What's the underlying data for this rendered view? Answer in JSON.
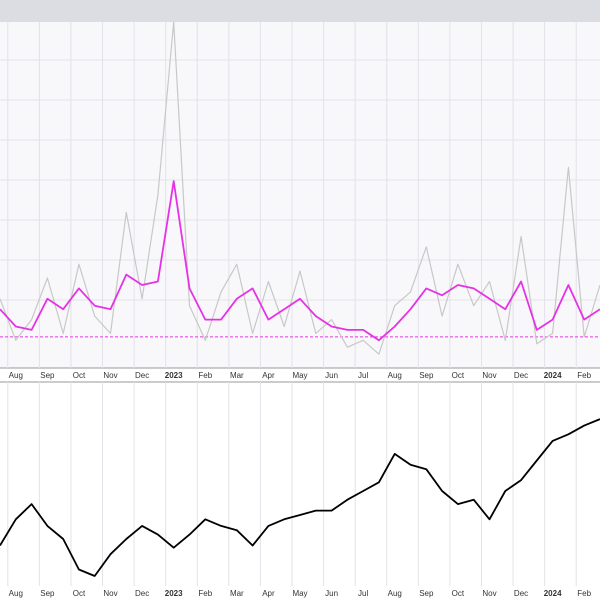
{
  "chart_data": [
    {
      "type": "line",
      "x": [
        -0.5,
        0,
        0.5,
        1,
        1.5,
        2,
        2.5,
        3,
        3.5,
        4,
        4.5,
        5,
        5.5,
        6,
        6.5,
        7,
        7.5,
        8,
        8.5,
        9,
        9.5,
        10,
        10.5,
        11,
        11.5,
        12,
        12.5,
        13,
        13.5,
        14,
        14.5,
        15,
        15.5,
        16,
        16.5,
        17,
        17.5,
        18,
        18.5
      ],
      "series": [
        {
          "color": "#c8c8c8",
          "values": [
            20,
            8,
            14,
            26,
            10,
            30,
            15,
            10,
            45,
            20,
            50,
            100,
            18,
            8,
            22,
            30,
            10,
            25,
            12,
            28,
            10,
            14,
            6,
            8,
            4,
            18,
            22,
            35,
            15,
            30,
            18,
            25,
            8,
            38,
            7,
            10,
            58,
            9,
            24
          ]
        },
        {
          "color": "#e632e6",
          "values": [
            17,
            12,
            11,
            20,
            17,
            23,
            18,
            17,
            27,
            24,
            25,
            54,
            23,
            14,
            14,
            20,
            23,
            14,
            17,
            20,
            15,
            12,
            11,
            11,
            8,
            12,
            17,
            23,
            21,
            24,
            23,
            20,
            17,
            25,
            11,
            14,
            24,
            14,
            17
          ]
        }
      ],
      "hline": {
        "value": 9,
        "color": "#e632e6"
      },
      "xlim": [
        -0.5,
        18.5
      ],
      "ylim": [
        0,
        100
      ],
      "xticks": [
        {
          "value": 0,
          "label": "Aug"
        },
        {
          "value": 1,
          "label": "Sep"
        },
        {
          "value": 2,
          "label": "Oct"
        },
        {
          "value": 3,
          "label": "Nov"
        },
        {
          "value": 4,
          "label": "Dec"
        },
        {
          "value": 5,
          "label": "2023"
        },
        {
          "value": 6,
          "label": "Feb"
        },
        {
          "value": 7,
          "label": "Mar"
        },
        {
          "value": 8,
          "label": "Apr"
        },
        {
          "value": 9,
          "label": "May"
        },
        {
          "value": 10,
          "label": "Jun"
        },
        {
          "value": 11,
          "label": "Jul"
        },
        {
          "value": 12,
          "label": "Aug"
        },
        {
          "value": 13,
          "label": "Sep"
        },
        {
          "value": 14,
          "label": "Oct"
        },
        {
          "value": 15,
          "label": "Nov"
        },
        {
          "value": 16,
          "label": "Dec"
        },
        {
          "value": 17,
          "label": "2024"
        },
        {
          "value": 18,
          "label": "Feb"
        }
      ],
      "grid": true
    },
    {
      "type": "line",
      "x": [
        -0.5,
        0,
        0.5,
        1,
        1.5,
        2,
        2.5,
        3,
        3.5,
        4,
        4.5,
        5,
        5.5,
        6,
        6.5,
        7,
        7.5,
        8,
        8.5,
        9,
        9.5,
        10,
        10.5,
        11,
        11.5,
        12,
        12.5,
        13,
        13.5,
        14,
        14.5,
        15,
        15.5,
        16,
        16.5,
        17,
        17.5,
        18,
        18.5
      ],
      "series": [
        {
          "color": "#000000",
          "values": [
            25,
            37,
            44,
            34,
            28,
            14,
            11,
            21,
            28,
            34,
            30,
            24,
            30,
            37,
            34,
            32,
            25,
            34,
            37,
            39,
            41,
            41,
            46,
            50,
            54,
            67,
            62,
            60,
            50,
            44,
            46,
            37,
            50,
            55,
            64,
            73,
            76,
            80,
            83
          ]
        }
      ],
      "xlim": [
        -0.5,
        18.5
      ],
      "ylim": [
        0,
        100
      ],
      "xticks": [
        {
          "value": 0,
          "label": "Aug"
        },
        {
          "value": 1,
          "label": "Sep"
        },
        {
          "value": 2,
          "label": "Oct"
        },
        {
          "value": 3,
          "label": "Nov"
        },
        {
          "value": 4,
          "label": "Dec"
        },
        {
          "value": 5,
          "label": "2023"
        },
        {
          "value": 6,
          "label": "Feb"
        },
        {
          "value": 7,
          "label": "Mar"
        },
        {
          "value": 8,
          "label": "Apr"
        },
        {
          "value": 9,
          "label": "May"
        },
        {
          "value": 10,
          "label": "Jun"
        },
        {
          "value": 11,
          "label": "Jul"
        },
        {
          "value": 12,
          "label": "Aug"
        },
        {
          "value": 13,
          "label": "Sep"
        },
        {
          "value": 14,
          "label": "Oct"
        },
        {
          "value": 15,
          "label": "Nov"
        },
        {
          "value": 16,
          "label": "Dec"
        },
        {
          "value": 17,
          "label": "2024"
        },
        {
          "value": 18,
          "label": "Feb"
        }
      ],
      "grid": true
    }
  ]
}
